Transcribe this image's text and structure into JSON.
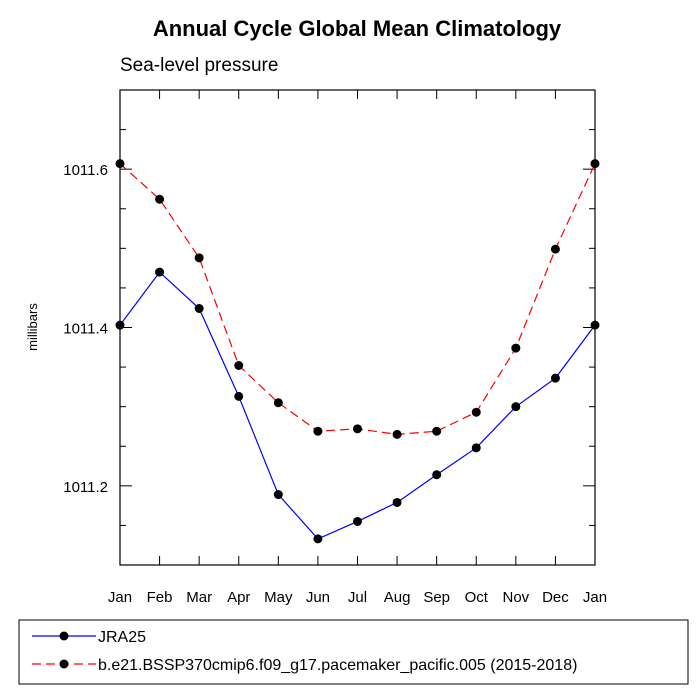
{
  "chart_data": {
    "type": "line",
    "title": "Annual Cycle Global Mean Climatology",
    "subtitle": "Sea-level pressure",
    "xlabel": "",
    "ylabel": "millibars",
    "categories": [
      "Jan",
      "Feb",
      "Mar",
      "Apr",
      "May",
      "Jun",
      "Jul",
      "Aug",
      "Sep",
      "Oct",
      "Nov",
      "Dec",
      "Jan"
    ],
    "ylim": [
      1011.1,
      1011.7
    ],
    "yticks": [
      1011.2,
      1011.4,
      1011.6
    ],
    "ytick_labels": [
      "1011.2",
      "1011.4",
      "1011.6"
    ],
    "y_minor_step": 0.05,
    "series": [
      {
        "name": "JRA25",
        "color": "#0000ff",
        "dash": "solid",
        "values": [
          1011.403,
          1011.47,
          1011.424,
          1011.313,
          1011.189,
          1011.133,
          1011.155,
          1011.179,
          1011.214,
          1011.248,
          1011.3,
          1011.336,
          1011.403
        ]
      },
      {
        "name": "b.e21.BSSP370cmip6.f09_g17.pacemaker_pacific.005 (2015-2018)",
        "color": "#ff0000",
        "dash": "dashed",
        "values": [
          1011.607,
          1011.562,
          1011.488,
          1011.352,
          1011.305,
          1011.269,
          1011.272,
          1011.265,
          1011.269,
          1011.293,
          1011.374,
          1011.499,
          1011.607
        ]
      }
    ]
  }
}
